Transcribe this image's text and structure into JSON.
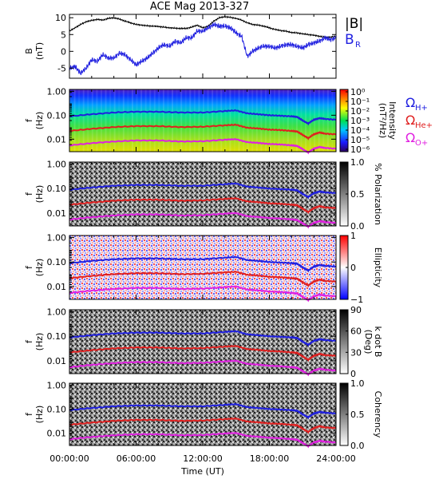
{
  "chart_data": [
    {
      "type": "line",
      "title": "ACE Mag 2013-327",
      "ylabel": "B",
      "yunit": "(nT)",
      "ylim": [
        -8,
        11
      ],
      "yticks": [
        "10",
        "5",
        "0",
        "-5"
      ],
      "ytick_values": [
        10,
        5,
        0,
        -5
      ],
      "xlim": [
        0,
        24
      ],
      "series": [
        {
          "name": "|B|",
          "color": "#000000",
          "x": [
            0,
            0.5,
            1,
            1.5,
            2,
            2.5,
            3,
            3.5,
            4,
            4.5,
            5,
            5.5,
            6,
            6.5,
            7,
            7.5,
            8,
            8.5,
            9,
            9.5,
            10,
            10.5,
            11,
            11.5,
            12,
            12.5,
            13,
            13.5,
            14,
            14.5,
            15,
            15.5,
            16,
            16.5,
            17,
            17.5,
            18,
            18.5,
            19,
            19.5,
            20,
            20.5,
            21,
            21.5,
            22,
            22.5,
            23,
            23.5,
            24
          ],
          "y": [
            6,
            7,
            8,
            8.8,
            9.2,
            9.5,
            9.3,
            9.8,
            10,
            9.6,
            9,
            8.5,
            8,
            7.8,
            7.6,
            7.5,
            7.4,
            7.2,
            7,
            6.9,
            6.8,
            6.8,
            7.2,
            7.8,
            7,
            7.5,
            9,
            10,
            10.3,
            10.1,
            9.8,
            9.3,
            8.5,
            8,
            7.8,
            7.5,
            7,
            6.5,
            6.2,
            6,
            5.6,
            5.5,
            5.2,
            5,
            4.8,
            4.5,
            4.2,
            4.2,
            4.5
          ]
        },
        {
          "name": "B",
          "subscript": "R",
          "color": "#1f1fe0",
          "x": [
            0,
            0.5,
            1,
            1.5,
            2,
            2.5,
            3,
            3.5,
            4,
            4.5,
            5,
            5.5,
            6,
            6.5,
            7,
            7.5,
            8,
            8.5,
            9,
            9.5,
            10,
            10.5,
            11,
            11.5,
            12,
            12.5,
            13,
            13.5,
            14,
            14.5,
            15,
            15.5,
            16,
            16.5,
            17,
            17.5,
            18,
            18.5,
            19,
            19.5,
            20,
            20.5,
            21,
            21.5,
            22,
            22.5,
            23,
            23.5,
            24
          ],
          "y": [
            -5,
            -4.5,
            -6.5,
            -5,
            -2.5,
            -3,
            -1,
            -2,
            -2,
            -0.5,
            -1,
            -2.5,
            -4,
            -3,
            -2,
            -0.5,
            1,
            2,
            1.5,
            3,
            2.5,
            4,
            4,
            6,
            6,
            7,
            8,
            7.5,
            7.5,
            7,
            5.5,
            4.5,
            -1.5,
            0,
            1,
            1.5,
            1.5,
            1,
            1.5,
            2,
            2,
            1.5,
            1,
            2,
            2.5,
            3,
            4,
            3.5,
            4
          ]
        }
      ]
    },
    {
      "type": "heatmap",
      "ylabel": "f",
      "yunit": "(Hz)",
      "colorbar_label": "Intensity",
      "colorbar_unit": "(nT²/Hz)",
      "colorbar_scale": "rainbow",
      "colorbar_ticks": [
        "10⁰",
        "10⁻¹",
        "10⁻²",
        "10⁻³",
        "10⁻⁴",
        "10⁻⁵",
        "10⁻⁶"
      ],
      "yscale": "log",
      "ylim": [
        0.003,
        1.2
      ],
      "yticks": [
        "1.00",
        "0.10",
        "0.01"
      ],
      "legend": [
        {
          "label": "Ω",
          "subscript": "H+",
          "color": "#1f1fe0"
        },
        {
          "label": "Ω",
          "subscript": "He+",
          "color": "#e01f1f"
        },
        {
          "label": "Ω",
          "subscript": "O+",
          "color": "#e01fe0"
        }
      ]
    },
    {
      "type": "heatmap",
      "ylabel": "f",
      "yunit": "(Hz)",
      "colorbar_label": "% Polarization",
      "colorbar_scale": "grayscale",
      "colorbar_ticks": [
        "1.0",
        "0.5",
        "0.0"
      ],
      "yticks": [
        "1.00",
        "0.10",
        "0.01"
      ]
    },
    {
      "type": "heatmap",
      "ylabel": "f",
      "yunit": "(Hz)",
      "colorbar_label": "Ellipticity",
      "colorbar_scale": "blue-white-red",
      "colorbar_ticks": [
        "1",
        "0",
        "−1"
      ],
      "yticks": [
        "1.00",
        "0.10",
        "0.01"
      ]
    },
    {
      "type": "heatmap",
      "ylabel": "f",
      "yunit": "(Hz)",
      "colorbar_label": "k dot B",
      "colorbar_unit": "(Deg)",
      "colorbar_scale": "grayscale",
      "colorbar_ticks": [
        "90",
        "60",
        "30",
        "0"
      ],
      "yticks": [
        "1.00",
        "0.10",
        "0.01"
      ]
    },
    {
      "type": "heatmap",
      "ylabel": "f",
      "yunit": "(Hz)",
      "colorbar_label": "Coherency",
      "colorbar_scale": "grayscale",
      "colorbar_ticks": [
        "1.0",
        "0.5",
        "0.0"
      ],
      "yticks": [
        "1.00",
        "0.10",
        "0.01"
      ],
      "xticks": [
        "00:00:00",
        "06:00:00",
        "12:00:00",
        "18:00:00",
        "24:00:00"
      ],
      "xtick_values": [
        0,
        6,
        12,
        18,
        24
      ],
      "xlabel": "Time (UT)"
    }
  ],
  "gyro_lines": {
    "x": [
      0,
      2,
      4,
      6,
      8,
      10,
      12,
      14,
      15,
      16,
      17,
      18,
      19,
      20,
      20.5,
      21,
      21.5,
      22,
      22.5,
      23,
      24
    ],
    "H": [
      0.09,
      0.11,
      0.13,
      0.14,
      0.14,
      0.13,
      0.13,
      0.15,
      0.16,
      0.12,
      0.11,
      0.1,
      0.095,
      0.09,
      0.085,
      0.06,
      0.045,
      0.065,
      0.075,
      0.07,
      0.065
    ],
    "He": [
      0.022,
      0.027,
      0.032,
      0.035,
      0.035,
      0.032,
      0.033,
      0.038,
      0.04,
      0.03,
      0.028,
      0.025,
      0.024,
      0.022,
      0.021,
      0.015,
      0.011,
      0.016,
      0.019,
      0.017,
      0.016
    ],
    "O": [
      0.0055,
      0.0068,
      0.008,
      0.0088,
      0.0088,
      0.008,
      0.0082,
      0.0095,
      0.01,
      0.0075,
      0.007,
      0.0063,
      0.006,
      0.0055,
      0.0052,
      0.0038,
      0.0028,
      0.004,
      0.0047,
      0.0043,
      0.004
    ]
  },
  "colors": {
    "H": "#1f1fe0",
    "He": "#e01f1f",
    "O": "#e01fe0"
  }
}
